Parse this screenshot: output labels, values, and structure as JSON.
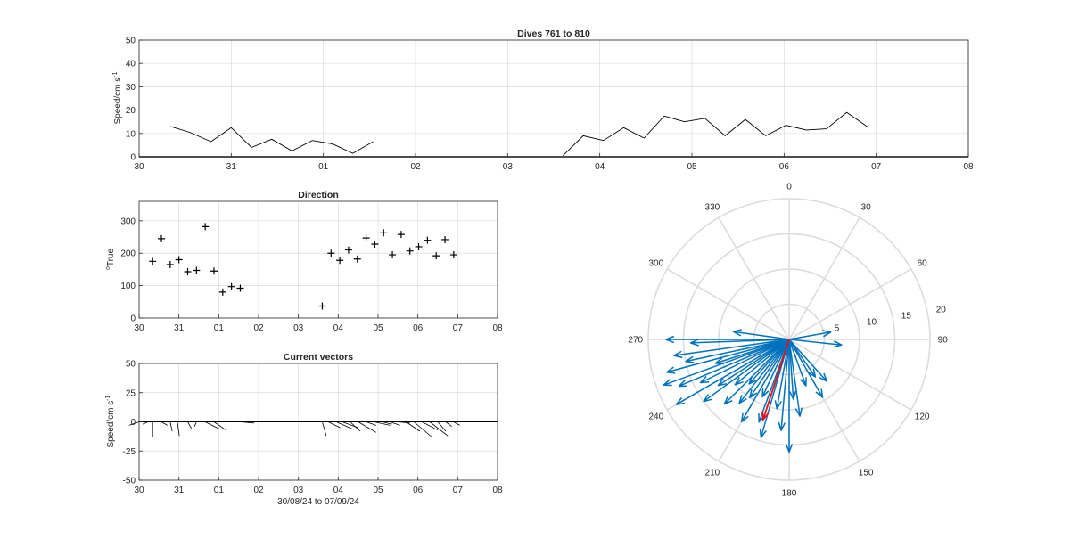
{
  "colors": {
    "axis": "#262626",
    "grid": "#dcdcdc",
    "vector": "#0072bd",
    "mean": "#e8121a",
    "trace": "#000000"
  },
  "speed_panel": {
    "title": "Dives 761 to 810",
    "ylabel": "Speed/cm s",
    "ylabel_sup": "-1"
  },
  "direction_panel": {
    "title": "Direction",
    "ylabel": "True",
    "ylabel_sup": "o"
  },
  "vector_panel": {
    "title": "Current vectors",
    "ylabel": "Speed/cm s",
    "ylabel_sup": "-1",
    "xlabel": "30/08/24 to 07/09/24"
  },
  "chart_data": [
    {
      "type": "line",
      "title": "Dives 761 to 810",
      "ylabel": "Speed/cm s-1",
      "xlim": [
        0,
        9
      ],
      "ylim": [
        0,
        50
      ],
      "grid": true,
      "xtick_values": [
        0,
        1,
        2,
        3,
        4,
        5,
        6,
        7,
        8,
        9
      ],
      "xtick_labels": [
        "30",
        "31",
        "01",
        "02",
        "03",
        "04",
        "05",
        "06",
        "07",
        "08"
      ],
      "ytick_values": [
        0,
        10,
        20,
        30,
        40,
        50
      ],
      "segments": [
        [
          [
            0.34,
            13
          ],
          [
            0.55,
            10.5
          ],
          [
            0.78,
            6.5
          ],
          [
            1.0,
            12.5
          ],
          [
            1.22,
            4
          ],
          [
            1.44,
            7.5
          ],
          [
            1.66,
            2.5
          ],
          [
            1.88,
            7
          ],
          [
            2.1,
            5.5
          ],
          [
            2.32,
            1.5
          ],
          [
            2.54,
            6.5
          ]
        ],
        [
          [
            4.6,
            0.5
          ],
          [
            4.82,
            9
          ],
          [
            5.04,
            7
          ],
          [
            5.26,
            12.5
          ],
          [
            5.48,
            8
          ],
          [
            5.7,
            17.5
          ],
          [
            5.92,
            15
          ],
          [
            6.14,
            16.5
          ],
          [
            6.36,
            9
          ],
          [
            6.58,
            16
          ],
          [
            6.8,
            9
          ],
          [
            7.02,
            13.5
          ],
          [
            7.24,
            11.5
          ],
          [
            7.46,
            12
          ],
          [
            7.68,
            19
          ],
          [
            7.9,
            13
          ]
        ]
      ]
    },
    {
      "type": "scatter",
      "title": "Direction",
      "ylabel": "o True",
      "xlim": [
        0,
        9
      ],
      "ylim": [
        0,
        360
      ],
      "grid": true,
      "xtick_values": [
        0,
        1,
        2,
        3,
        4,
        5,
        6,
        7,
        8,
        9
      ],
      "xtick_labels": [
        "30",
        "31",
        "01",
        "02",
        "03",
        "04",
        "05",
        "06",
        "07",
        "08"
      ],
      "ytick_values": [
        0,
        100,
        200,
        300
      ],
      "points": [
        [
          0.34,
          175
        ],
        [
          0.56,
          245
        ],
        [
          0.78,
          165
        ],
        [
          1.0,
          180
        ],
        [
          1.22,
          143
        ],
        [
          1.44,
          147
        ],
        [
          1.66,
          282
        ],
        [
          1.88,
          145
        ],
        [
          2.1,
          80
        ],
        [
          2.32,
          97
        ],
        [
          2.54,
          92
        ],
        [
          4.6,
          37
        ],
        [
          4.82,
          200
        ],
        [
          5.04,
          178
        ],
        [
          5.26,
          210
        ],
        [
          5.48,
          182
        ],
        [
          5.7,
          247
        ],
        [
          5.92,
          228
        ],
        [
          6.14,
          263
        ],
        [
          6.36,
          195
        ],
        [
          6.58,
          258
        ],
        [
          6.8,
          207
        ],
        [
          7.02,
          220
        ],
        [
          7.24,
          240
        ],
        [
          7.46,
          192
        ],
        [
          7.68,
          242
        ],
        [
          7.9,
          195
        ]
      ]
    },
    {
      "type": "quiver",
      "title": "Current vectors",
      "ylabel": "Speed/cm s-1",
      "xlabel": "30/08/24 to 07/09/24",
      "xlim": [
        0,
        9
      ],
      "ylim": [
        -50,
        50
      ],
      "grid": true,
      "xtick_values": [
        0,
        1,
        2,
        3,
        4,
        5,
        6,
        7,
        8,
        9
      ],
      "xtick_labels": [
        "30",
        "31",
        "01",
        "02",
        "03",
        "04",
        "05",
        "06",
        "07",
        "08"
      ],
      "ytick_values": [
        -50,
        -25,
        0,
        25,
        50
      ],
      "vectors": [
        [
          0.0,
          -0.5,
          -3
        ],
        [
          0.22,
          -0.25,
          -2
        ],
        [
          0.34,
          0,
          -13
        ],
        [
          0.56,
          0.3,
          -3
        ],
        [
          0.78,
          0.1,
          -8
        ],
        [
          0.96,
          0.1,
          -12
        ],
        [
          1.22,
          0.2,
          -6
        ],
        [
          1.44,
          -0.1,
          -4
        ],
        [
          1.66,
          0.7,
          -6
        ],
        [
          1.88,
          0.6,
          -7
        ],
        [
          2.25,
          0.3,
          1
        ],
        [
          2.54,
          0.7,
          -1
        ],
        [
          4.6,
          0.2,
          -12
        ],
        [
          4.75,
          0.6,
          -5
        ],
        [
          4.95,
          0.8,
          -6
        ],
        [
          5.1,
          0.8,
          -5
        ],
        [
          5.3,
          0.5,
          -8
        ],
        [
          5.5,
          0.9,
          -9
        ],
        [
          5.7,
          0.5,
          -3
        ],
        [
          5.9,
          0.8,
          -3
        ],
        [
          6.1,
          0.5,
          -2
        ],
        [
          6.3,
          0.5,
          -3
        ],
        [
          6.5,
          0.6,
          -1
        ],
        [
          6.7,
          0.7,
          -8
        ],
        [
          6.9,
          0.9,
          -13
        ],
        [
          7.1,
          0.8,
          -7
        ],
        [
          7.3,
          0.9,
          -12
        ],
        [
          7.5,
          0.4,
          -8
        ],
        [
          7.7,
          0.3,
          -4
        ],
        [
          7.9,
          0.3,
          -3
        ]
      ]
    },
    {
      "type": "compass",
      "rlim": [
        0,
        20
      ],
      "radial_ticks": [
        5,
        10,
        15,
        20
      ],
      "angle_labels": [
        "0",
        "30",
        "60",
        "90",
        "120",
        "150",
        "180",
        "210",
        "240",
        "270",
        "300",
        "330"
      ],
      "vectors": [
        {
          "dir": 270,
          "speed": 17.5
        },
        {
          "dir": 268,
          "speed": 14
        },
        {
          "dir": 262,
          "speed": 16.5
        },
        {
          "dir": 258,
          "speed": 15
        },
        {
          "dir": 255,
          "speed": 18
        },
        {
          "dir": 252,
          "speed": 11
        },
        {
          "dir": 250,
          "speed": 19
        },
        {
          "dir": 247,
          "speed": 17
        },
        {
          "dir": 244,
          "speed": 14
        },
        {
          "dir": 240,
          "speed": 18.5
        },
        {
          "dir": 237,
          "speed": 12
        },
        {
          "dir": 234,
          "speed": 15
        },
        {
          "dir": 230,
          "speed": 10
        },
        {
          "dir": 225,
          "speed": 13
        },
        {
          "dir": 222,
          "speed": 8.5
        },
        {
          "dir": 218,
          "speed": 11.5
        },
        {
          "dir": 214,
          "speed": 10
        },
        {
          "dir": 210,
          "speed": 13.5
        },
        {
          "dir": 205,
          "speed": 9
        },
        {
          "dir": 200,
          "speed": 12.5
        },
        {
          "dir": 196,
          "speed": 14.5
        },
        {
          "dir": 190,
          "speed": 10
        },
        {
          "dir": 185,
          "speed": 13
        },
        {
          "dir": 180,
          "speed": 16
        },
        {
          "dir": 176,
          "speed": 8.5
        },
        {
          "dir": 172,
          "speed": 11
        },
        {
          "dir": 160,
          "speed": 7
        },
        {
          "dir": 150,
          "speed": 9.5
        },
        {
          "dir": 145,
          "speed": 6.5
        },
        {
          "dir": 138,
          "speed": 8
        },
        {
          "dir": 96,
          "speed": 7.5
        },
        {
          "dir": 80,
          "speed": 6
        },
        {
          "dir": 278,
          "speed": 8
        }
      ],
      "mean_vector": {
        "dir": 198,
        "speed": 12
      }
    }
  ]
}
